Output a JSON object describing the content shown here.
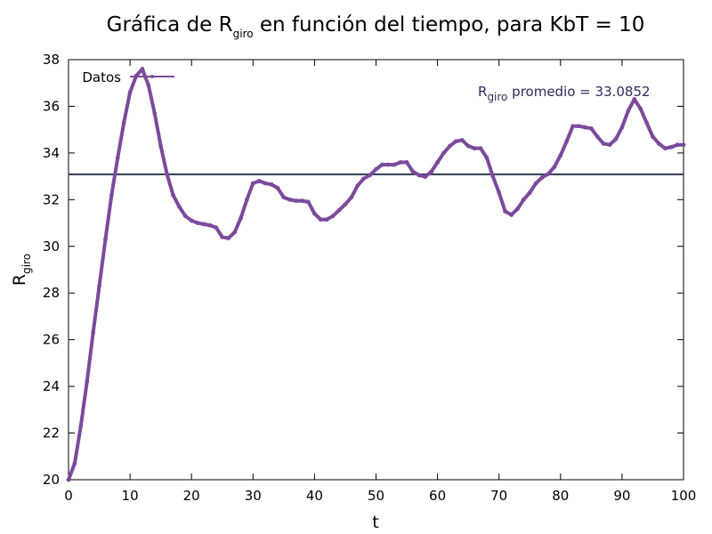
{
  "chart_data": {
    "type": "line",
    "title": {
      "prefix": "Gráfica de R",
      "sub": "giro",
      "suffix": " en función del tiempo, para KbT = 10"
    },
    "xlabel": "t",
    "ylabel": {
      "main": "R",
      "sub": "giro"
    },
    "xlim": [
      0,
      100
    ],
    "ylim": [
      20,
      38
    ],
    "xticks": [
      0,
      10,
      20,
      30,
      40,
      50,
      60,
      70,
      80,
      90,
      100
    ],
    "yticks": [
      20,
      22,
      24,
      26,
      28,
      30,
      32,
      34,
      36,
      38
    ],
    "grid": false,
    "legend_position": "top-left",
    "series": [
      {
        "name": "Datos",
        "color": "#7b4a9c",
        "x": [
          0,
          1,
          2,
          3,
          4,
          5,
          6,
          7,
          8,
          9,
          10,
          11,
          12,
          13,
          14,
          15,
          16,
          17,
          18,
          19,
          20,
          21,
          22,
          23,
          24,
          25,
          26,
          27,
          28,
          29,
          30,
          31,
          32,
          33,
          34,
          35,
          36,
          37,
          38,
          39,
          40,
          41,
          42,
          43,
          44,
          45,
          46,
          47,
          48,
          49,
          50,
          51,
          52,
          53,
          54,
          55,
          56,
          57,
          58,
          59,
          60,
          61,
          62,
          63,
          64,
          65,
          66,
          67,
          68,
          69,
          70,
          71,
          72,
          73,
          74,
          75,
          76,
          77,
          78,
          79,
          80,
          81,
          82,
          83,
          84,
          85,
          86,
          87,
          88,
          89,
          90,
          91,
          92,
          93,
          94,
          95,
          96,
          97,
          98,
          99,
          100
        ],
        "y": [
          20.0,
          20.7,
          22.3,
          24.2,
          26.3,
          28.3,
          30.3,
          32.2,
          33.8,
          35.3,
          36.6,
          37.3,
          37.6,
          36.9,
          35.7,
          34.3,
          33.1,
          32.2,
          31.7,
          31.3,
          31.1,
          31.0,
          30.95,
          30.9,
          30.8,
          30.4,
          30.35,
          30.6,
          31.2,
          32.0,
          32.7,
          32.8,
          32.7,
          32.65,
          32.5,
          32.1,
          32.0,
          31.95,
          31.95,
          31.9,
          31.4,
          31.15,
          31.15,
          31.3,
          31.55,
          31.8,
          32.1,
          32.6,
          32.9,
          33.05,
          33.3,
          33.5,
          33.5,
          33.5,
          33.6,
          33.6,
          33.2,
          33.05,
          32.98,
          33.2,
          33.6,
          34.0,
          34.3,
          34.5,
          34.55,
          34.3,
          34.2,
          34.2,
          33.8,
          33.0,
          32.3,
          31.5,
          31.35,
          31.6,
          32.0,
          32.3,
          32.7,
          32.95,
          33.1,
          33.4,
          33.9,
          34.5,
          35.15,
          35.15,
          35.1,
          35.05,
          34.7,
          34.4,
          34.35,
          34.6,
          35.1,
          35.8,
          36.3,
          35.9,
          35.3,
          34.7,
          34.4,
          34.2,
          34.25,
          34.35,
          34.35
        ]
      }
    ],
    "reference_line": {
      "y": 33.0852,
      "color": "#2b3a52",
      "label": {
        "main": "R",
        "sub": "giro",
        "suffix": " promedio = 33.0852"
      }
    }
  }
}
